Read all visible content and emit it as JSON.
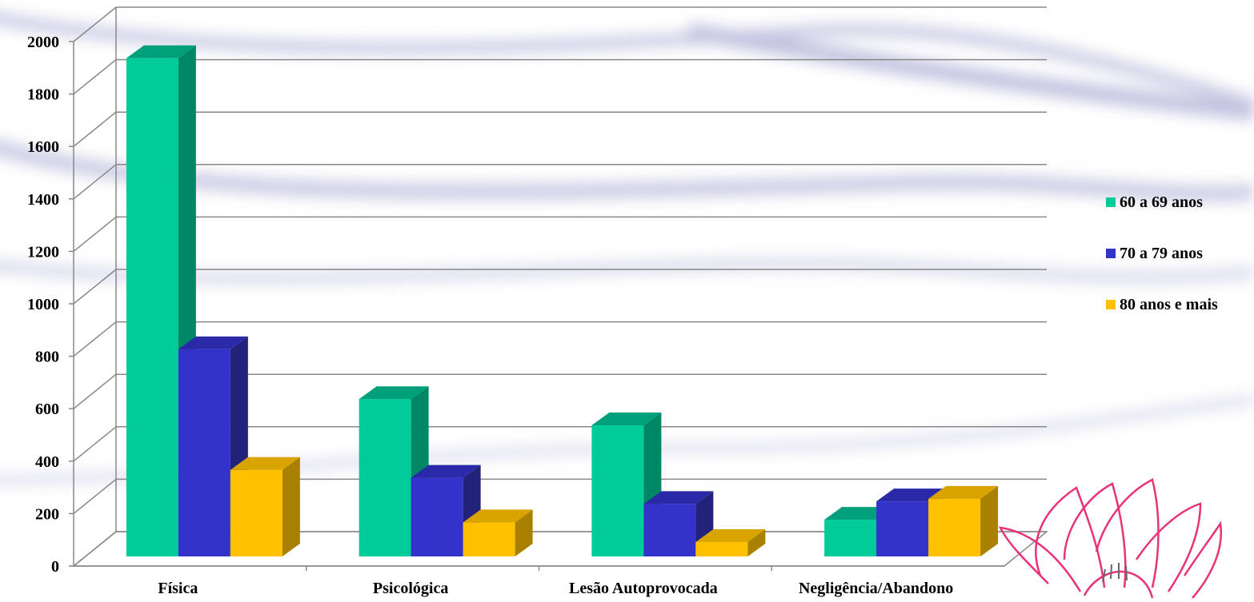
{
  "chart_data": {
    "type": "bar",
    "title": "",
    "xlabel": "",
    "ylabel": "",
    "ylim": [
      0,
      2000
    ],
    "y_ticks": [
      "0",
      "200",
      "400",
      "600",
      "800",
      "1000",
      "1200",
      "1400",
      "1600",
      "1800",
      "2000"
    ],
    "categories": [
      "Física",
      "Psicológica",
      "Lesão Autoprovocada",
      "Negligência/Abandono"
    ],
    "series": [
      {
        "name": "60 a 69 anos",
        "values": [
          1900,
          600,
          500,
          140
        ],
        "color": "#00CC99",
        "side_color": "#008866",
        "top_color": "#00A07A"
      },
      {
        "name": "70 a 79 anos",
        "values": [
          790,
          300,
          200,
          210
        ],
        "color": "#3333CC",
        "side_color": "#22227A",
        "top_color": "#2A2AA8"
      },
      {
        "name": "80 anos e mais",
        "values": [
          330,
          130,
          55,
          220
        ],
        "color": "#FFC000",
        "side_color": "#AA8000",
        "top_color": "#D9A300"
      }
    ],
    "grid": true,
    "legend_position": "right",
    "three_d": true
  }
}
